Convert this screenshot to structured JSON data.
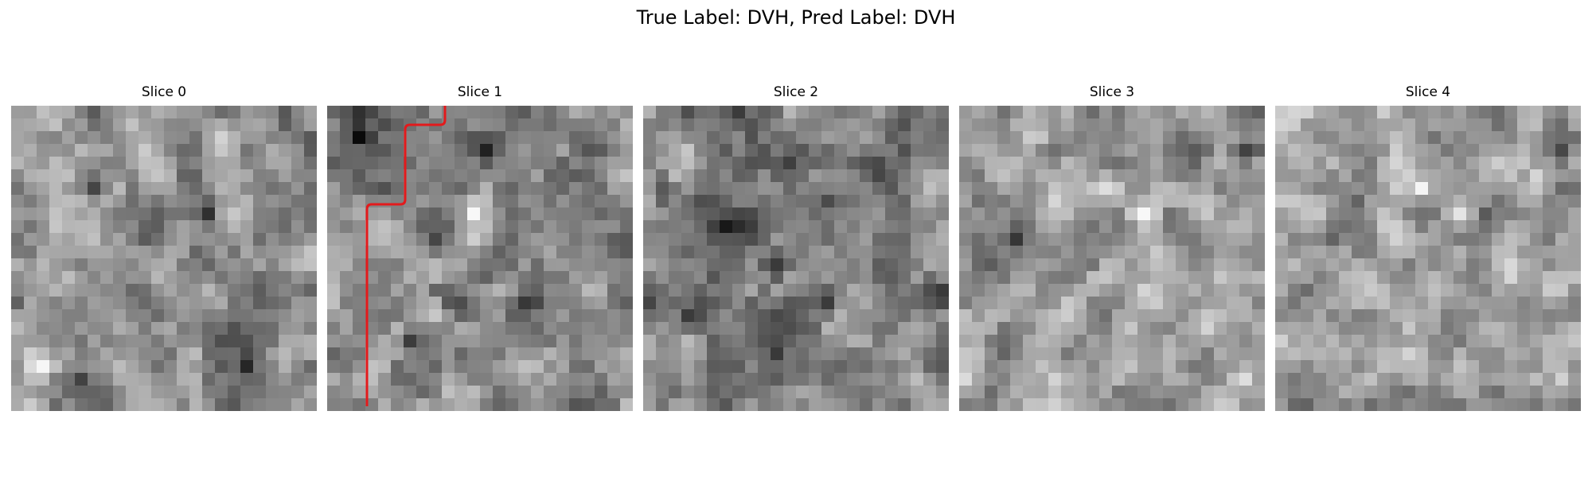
{
  "figure": {
    "title": "True Label: DVH, Pred Label: DVH",
    "colormap": "gray"
  },
  "slices": [
    {
      "title": "Slice 0",
      "has_annotation": false
    },
    {
      "title": "Slice 1",
      "has_annotation": true
    },
    {
      "title": "Slice 2",
      "has_annotation": false
    },
    {
      "title": "Slice 3",
      "has_annotation": false
    },
    {
      "title": "Slice 4",
      "has_annotation": false
    }
  ],
  "annotation": {
    "color": "#e31a1c"
  }
}
